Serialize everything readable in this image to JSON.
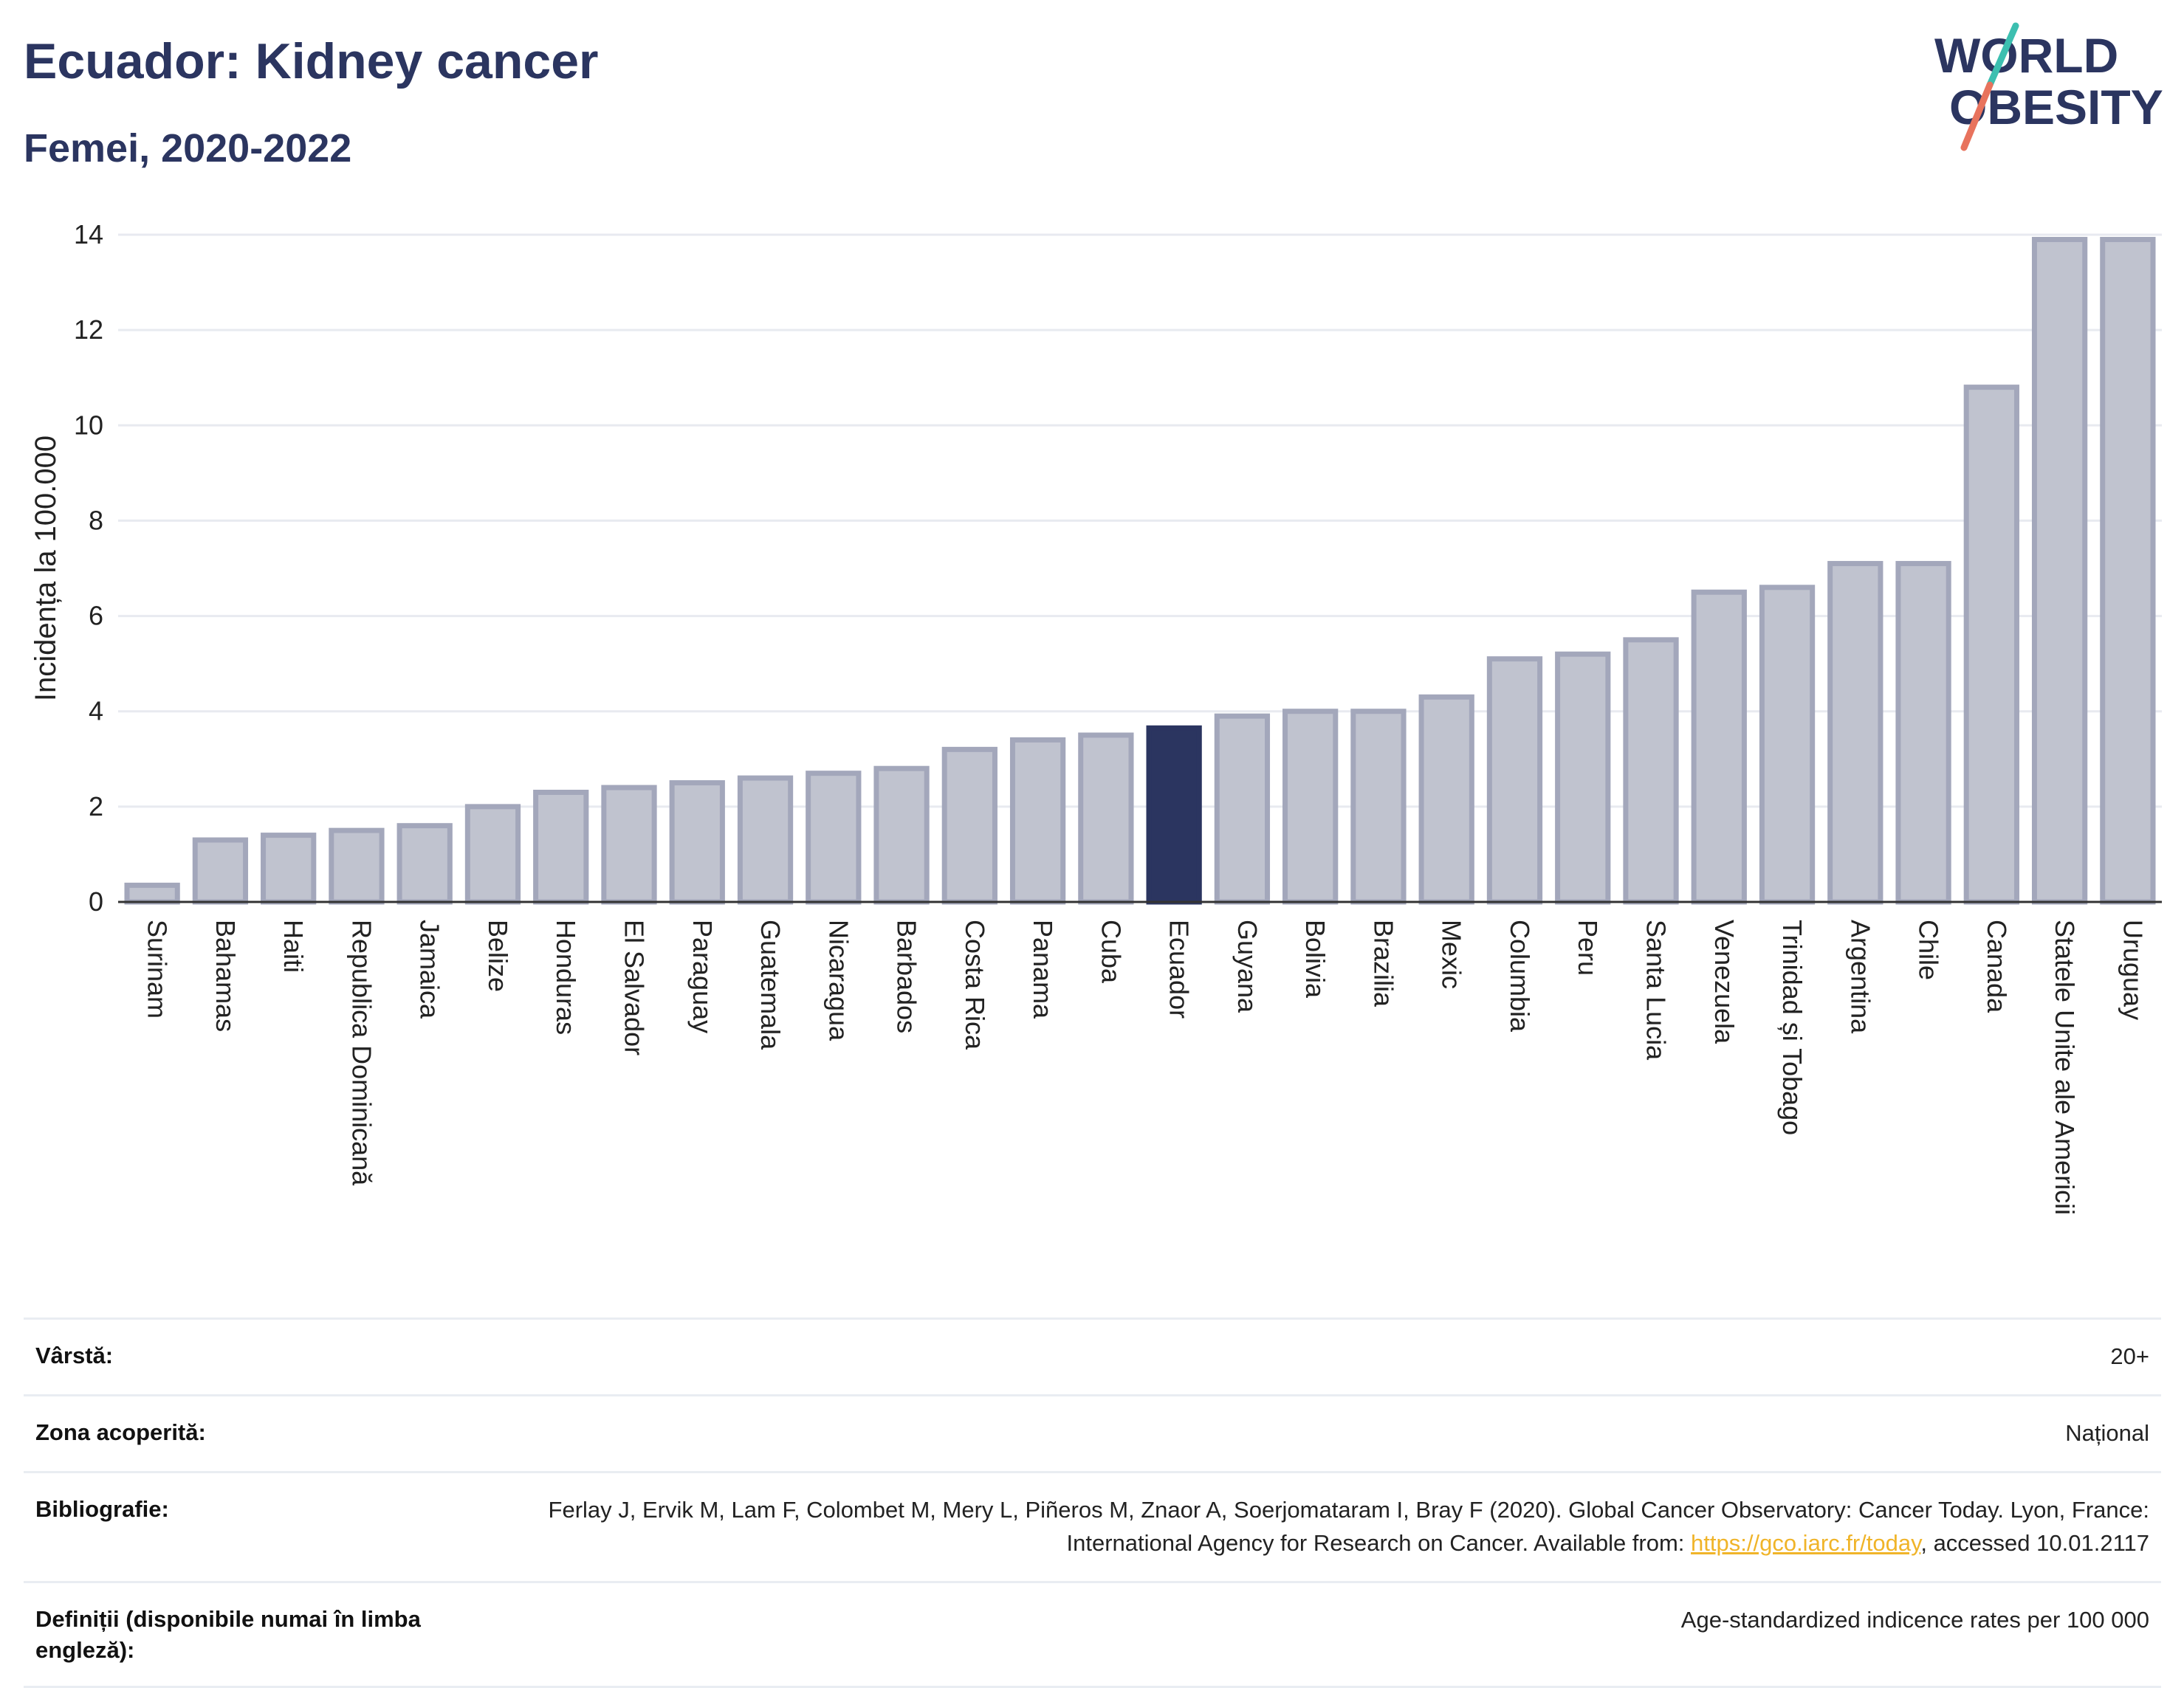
{
  "header": {
    "title": "Ecuador: Kidney cancer",
    "subtitle": "Femei, 2020-2022",
    "logo_line1": "WORLD",
    "logo_line2": "OBESITY"
  },
  "colors": {
    "bar": "#c0c3cf",
    "bar_border": "#a3a7bb",
    "highlight": "#2b3560",
    "grid": "#e8eaf0",
    "axis": "#333333",
    "logo_text": "#2b3560",
    "logo_slash_top": "#3cbfb0",
    "logo_slash_bottom": "#e8735d"
  },
  "chart_data": {
    "type": "bar",
    "ylabel": "Incidența la 100.000",
    "ylim": [
      0,
      14
    ],
    "yticks": [
      0,
      2,
      4,
      6,
      8,
      10,
      12,
      14
    ],
    "grid": true,
    "highlight": "Ecuador",
    "categories": [
      "Surinam",
      "Bahamas",
      "Haiti",
      "Republica Dominicană",
      "Jamaica",
      "Belize",
      "Honduras",
      "El Salvador",
      "Paraguay",
      "Guatemala",
      "Nicaragua",
      "Barbados",
      "Costa Rica",
      "Panama",
      "Cuba",
      "Ecuador",
      "Guyana",
      "Bolivia",
      "Brazilia",
      "Mexic",
      "Columbia",
      "Peru",
      "Santa Lucia",
      "Venezuela",
      "Trinidad și Tobago",
      "Argentina",
      "Chile",
      "Canada",
      "Statele Unite ale Americii",
      "Uruguay"
    ],
    "values": [
      0.35,
      1.3,
      1.4,
      1.5,
      1.6,
      2.0,
      2.3,
      2.4,
      2.5,
      2.6,
      2.7,
      2.8,
      3.2,
      3.4,
      3.5,
      3.65,
      3.9,
      4.0,
      4.0,
      4.3,
      5.1,
      5.2,
      5.5,
      6.5,
      6.6,
      7.1,
      7.1,
      10.8,
      13.9,
      13.9
    ]
  },
  "meta": [
    {
      "label": "Vârstă:",
      "value": "20+"
    },
    {
      "label": "Zona acoperită:",
      "value": "Național"
    },
    {
      "label": "Bibliografie:",
      "value_prefix": "Ferlay J, Ervik M, Lam F, Colombet M, Mery L, Piñeros M, Znaor A, Soerjomataram I, Bray F (2020). Global Cancer Observatory: Cancer Today. Lyon, France: International Agency for Research on Cancer. Available from: ",
      "link": "https://gco.iarc.fr/today",
      "value_suffix": ", accessed 10.01.2117"
    },
    {
      "label": "Definiții (disponibile numai în limba engleză):",
      "value": "Age-standardized indicence rates per 100 000"
    }
  ]
}
